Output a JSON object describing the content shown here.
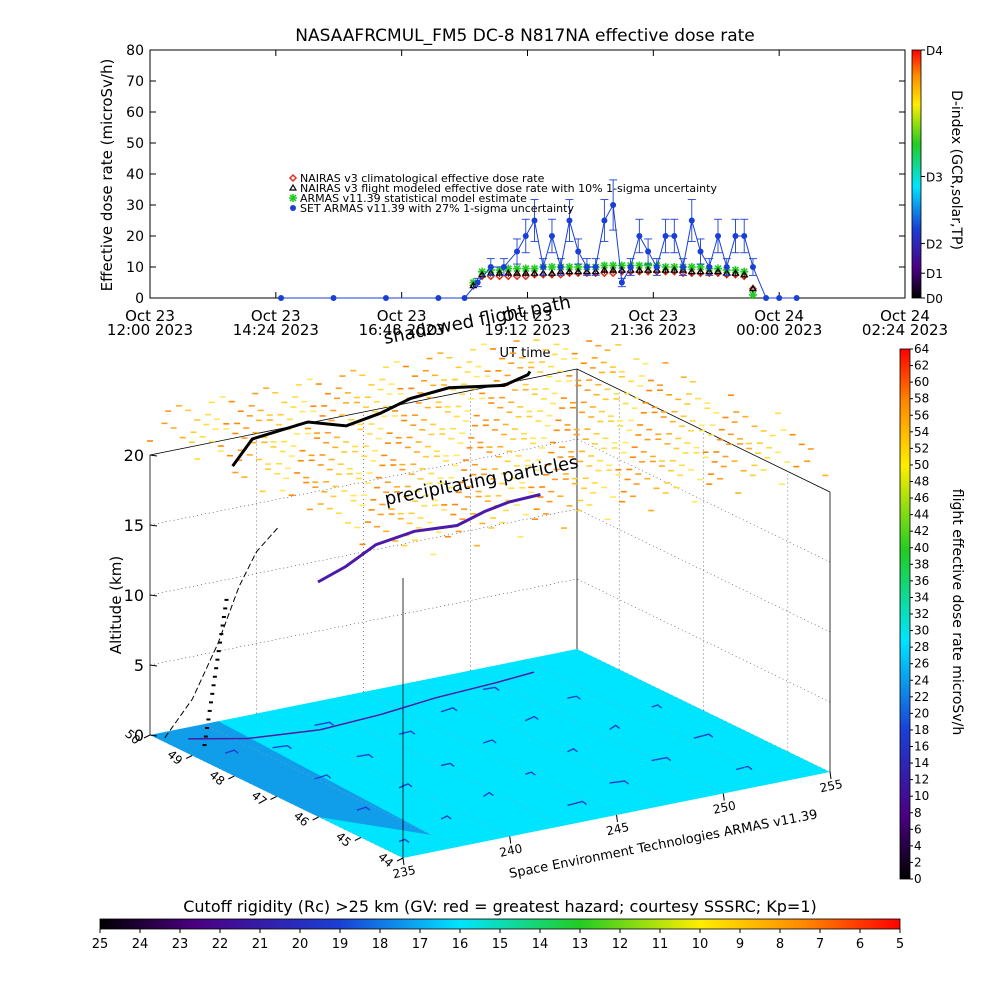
{
  "chart_data": [
    {
      "type": "scatter",
      "title": "NASAAFRCMUL_FM5 DC-8   N817NA effective dose rate",
      "xlabel": "UT time",
      "ylabel": "Effective dose rate (microSv/h)",
      "ylim": [
        0,
        80
      ],
      "yticks": [
        0,
        10,
        20,
        30,
        40,
        50,
        60,
        70,
        80
      ],
      "xlim_hours_label": "Oct 23 12:00 2023 to Oct 24 02:24 2023",
      "x_tick_labels": [
        [
          "Oct 23",
          "12:00 2023"
        ],
        [
          "Oct 23",
          "14:24 2023"
        ],
        [
          "Oct 23",
          "16:48 2023"
        ],
        [
          "Oct 23",
          "19:12 2023"
        ],
        [
          "Oct 23",
          "21:36 2023"
        ],
        [
          "Oct 24",
          "00:00 2023"
        ],
        [
          "Oct 24",
          "02:24 2023"
        ]
      ],
      "legend": [
        {
          "label": "NAIRAS v3 climatological effective dose rate",
          "color": "#e03020",
          "marker": "diamond"
        },
        {
          "label": "NAIRAS v3 flight modeled effective dose rate with 10% 1-sigma uncertainty",
          "color": "#000000",
          "marker": "triangle"
        },
        {
          "label": "ARMAS v11.39 statistical model estimate",
          "color": "#22cc22",
          "marker": "asterisk"
        },
        {
          "label": "SET ARMAS v11.39 with 27% 1-sigma uncertainty",
          "color": "#1a3fd6",
          "marker": "dot"
        }
      ],
      "series": [
        {
          "name": "NAIRAS v3 climatological effective dose rate",
          "x": [
            "18:10",
            "18:20",
            "18:30",
            "18:40",
            "18:50",
            "19:00",
            "19:10",
            "19:20",
            "19:30",
            "19:40",
            "19:50",
            "20:00",
            "20:10",
            "20:20",
            "20:30",
            "20:40",
            "20:50",
            "21:00",
            "21:10",
            "21:20",
            "21:30",
            "21:40",
            "21:50",
            "22:00",
            "22:10",
            "22:20",
            "22:30",
            "22:40",
            "22:50",
            "23:00",
            "23:10",
            "23:20",
            "23:30"
          ],
          "values": [
            4,
            7,
            7,
            7,
            7,
            7,
            7,
            7.5,
            7.5,
            7.5,
            7.5,
            8,
            8,
            8,
            8,
            8,
            8,
            8.5,
            8.5,
            8.5,
            8.5,
            8.5,
            8.5,
            8.5,
            8,
            8,
            8,
            8,
            8,
            7.5,
            7.5,
            7,
            3
          ]
        },
        {
          "name": "NAIRAS v3 flight modeled effective dose rate with 10% 1-sigma uncertainty",
          "x": [
            "18:10",
            "18:20",
            "18:30",
            "18:40",
            "18:50",
            "19:00",
            "19:10",
            "19:20",
            "19:30",
            "19:40",
            "19:50",
            "20:00",
            "20:10",
            "20:20",
            "20:30",
            "20:40",
            "20:50",
            "21:00",
            "21:10",
            "21:20",
            "21:30",
            "21:40",
            "21:50",
            "22:00",
            "22:10",
            "22:20",
            "22:30",
            "22:40",
            "22:50",
            "23:00",
            "23:10",
            "23:20",
            "23:30"
          ],
          "values": [
            4,
            7.5,
            8,
            8,
            8,
            8,
            8,
            8,
            8,
            8,
            8.5,
            8.5,
            8.5,
            8.5,
            8.5,
            9,
            9,
            9,
            9,
            9,
            9,
            9,
            9,
            9,
            9,
            8.5,
            8.5,
            8.5,
            8.5,
            8,
            8,
            7.5,
            3
          ]
        },
        {
          "name": "ARMAS v11.39 statistical model estimate",
          "x": [
            "18:10",
            "18:20",
            "18:30",
            "18:40",
            "18:50",
            "19:00",
            "19:10",
            "19:20",
            "19:30",
            "19:40",
            "19:50",
            "20:00",
            "20:10",
            "20:20",
            "20:30",
            "20:40",
            "20:50",
            "21:00",
            "21:10",
            "21:20",
            "21:30",
            "21:40",
            "21:50",
            "22:00",
            "22:10",
            "22:20",
            "22:30",
            "22:40",
            "22:50",
            "23:00",
            "23:10",
            "23:20",
            "23:30"
          ],
          "values": [
            5,
            8.5,
            9,
            9,
            9.5,
            9.5,
            9.5,
            9.5,
            10,
            10,
            10,
            10,
            10,
            10,
            10,
            10.5,
            10.5,
            10.5,
            10.5,
            10.5,
            10.5,
            10.5,
            10,
            10,
            10,
            10,
            10,
            9.5,
            9.5,
            9,
            9,
            8.5,
            1
          ]
        },
        {
          "name": "SET ARMAS v11.39 with 27% 1-sigma uncertainty",
          "x": [
            "14:30",
            "15:30",
            "16:30",
            "17:30",
            "18:00",
            "18:15",
            "18:30",
            "18:45",
            "19:00",
            "19:10",
            "19:20",
            "19:30",
            "19:40",
            "19:50",
            "20:00",
            "20:10",
            "20:20",
            "20:30",
            "20:40",
            "20:50",
            "21:00",
            "21:10",
            "21:20",
            "21:30",
            "21:40",
            "21:50",
            "22:00",
            "22:10",
            "22:20",
            "22:30",
            "22:40",
            "22:50",
            "23:00",
            "23:10",
            "23:20",
            "23:30",
            "23:45",
            "00:00",
            "00:20"
          ],
          "values": [
            0,
            0,
            0,
            0,
            0,
            5,
            10,
            10,
            15,
            20,
            25,
            10,
            20,
            10,
            25,
            15,
            10,
            10,
            25,
            30,
            5,
            10,
            20,
            15,
            10,
            20,
            20,
            10,
            25,
            15,
            10,
            20,
            10,
            20,
            20,
            10,
            0,
            0,
            0
          ]
        }
      ],
      "d_index": {
        "label": "D-index (GCR,solar,TP)",
        "ticks": [
          "D0",
          "D1",
          "D2",
          "D3",
          "D4"
        ]
      }
    },
    {
      "type": "scatter",
      "title": "flight path / shadowed flight path",
      "zlabel": "Altitude (km)",
      "zlim": [
        0,
        20
      ],
      "zticks": [
        0,
        5,
        10,
        15,
        20
      ],
      "lat_ticks": [
        "44",
        "45",
        "46",
        "47",
        "48",
        "49",
        "50"
      ],
      "lon_ticks": [
        "235",
        "240",
        "245",
        "250",
        "255"
      ],
      "annotations": [
        "shadowed flight path",
        "precipitating particles"
      ],
      "credit": "Space Environment Technologies ARMAS v11.39",
      "colorbar": {
        "label": "flight effective dose rate microSv/h",
        "min": 0,
        "max": 64,
        "step": 2
      }
    }
  ],
  "cutoff_bar": {
    "title": "Cutoff rigidity (Rc) >25 km (GV: red = greatest hazard; courtesy SSSRC; Kp=1)",
    "ticks": [
      "25",
      "24",
      "23",
      "22",
      "21",
      "20",
      "19",
      "18",
      "17",
      "16",
      "15",
      "14",
      "13",
      "12",
      "11",
      "10",
      "9",
      "8",
      "7",
      "6",
      "5"
    ]
  },
  "colors": {
    "nairas_clim": "#e03020",
    "nairas_flight": "#000000",
    "armas_model": "#22cc22",
    "set_armas": "#1a3fd6",
    "surface": "#00e5ff"
  }
}
